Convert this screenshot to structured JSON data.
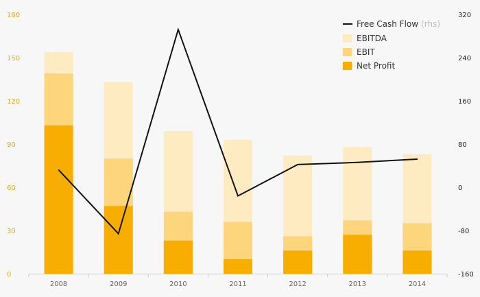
{
  "chart_data": {
    "type": "bar",
    "stacked": true,
    "categories": [
      "2008",
      "2009",
      "2010",
      "2011",
      "2012",
      "2013",
      "2014"
    ],
    "series": [
      {
        "name": "EBITDA",
        "values": [
          154,
          133,
          99,
          93,
          82,
          88,
          83
        ]
      },
      {
        "name": "EBIT",
        "values": [
          139,
          80,
          43,
          36,
          26,
          37,
          35
        ]
      },
      {
        "name": "Net Profit",
        "values": [
          103,
          47,
          23,
          10,
          16,
          27,
          16
        ]
      }
    ],
    "line_series": {
      "name": "Free Cash Flow",
      "axis_note": "(rhs)",
      "values": [
        32,
        -86,
        292,
        -16,
        42,
        46,
        52
      ]
    },
    "y_left": {
      "ticks": [
        "0",
        "30",
        "60",
        "90",
        "120",
        "150",
        "180"
      ],
      "range": [
        0,
        180
      ]
    },
    "y_right": {
      "ticks": [
        "-160",
        "-80",
        "0",
        "80",
        "160",
        "240",
        "320"
      ],
      "range": [
        -160,
        320
      ]
    },
    "legend": {
      "position": "top-right"
    },
    "grid": false,
    "colors": {
      "EBITDA": "#ffebc1",
      "EBIT": "#fdd57c",
      "Net Profit": "#f7ae00",
      "Free Cash Flow": "#111111",
      "left_axis": "#f0a800"
    }
  }
}
